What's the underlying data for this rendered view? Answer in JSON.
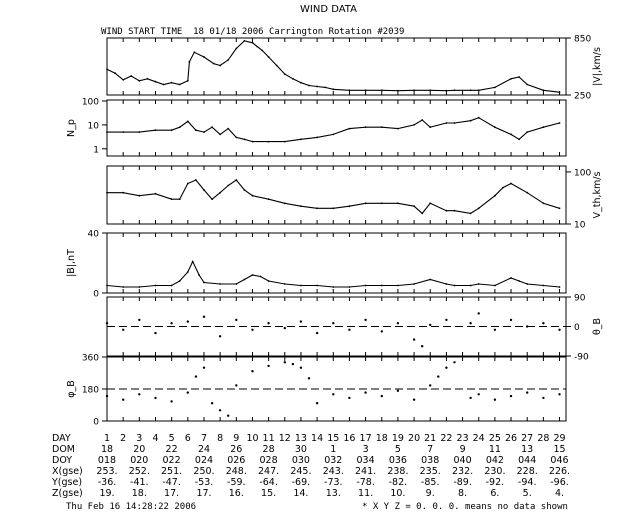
{
  "figure": {
    "title": "WIND DATA",
    "subtitle": "WIND START TIME  18 01/18 2006 Carrington Rotation #2039",
    "footer_left": "Thu Feb 16 14:28:22 2006",
    "footer_right": "* X Y Z = 0. 0. 0. means no data shown"
  },
  "chart_data": [
    {
      "type": "line",
      "panel": "speed",
      "ylabel": "|V|,km/s",
      "ylim": [
        250,
        850
      ],
      "yticks_right": [
        "850",
        "250"
      ],
      "x_unit": "day of rotation",
      "xlim": [
        1,
        29.4
      ],
      "series": [
        {
          "x": [
            1,
            1.5,
            2,
            2.5,
            3,
            3.5,
            4,
            4.5,
            5,
            5.5,
            6,
            6.1,
            6.4,
            7,
            7.6,
            8,
            8.5,
            9,
            9.5,
            10,
            10.3,
            10.6,
            11,
            11.5,
            12,
            12.5,
            13,
            13.5,
            14,
            14.5,
            15,
            16,
            17,
            18,
            19,
            20,
            21,
            22,
            22.5,
            23.5,
            24,
            25,
            26,
            26.5,
            27,
            28,
            29
          ],
          "y": [
            520,
            480,
            410,
            450,
            400,
            420,
            390,
            360,
            380,
            360,
            400,
            600,
            700,
            650,
            580,
            560,
            620,
            740,
            820,
            800,
            760,
            720,
            650,
            560,
            470,
            420,
            380,
            350,
            340,
            330,
            310,
            300,
            300,
            300,
            295,
            300,
            300,
            295,
            300,
            300,
            300,
            330,
            420,
            440,
            360,
            300,
            280
          ]
        }
      ]
    },
    {
      "type": "line",
      "panel": "density",
      "ylabel": "N_p",
      "yscale": "log",
      "ylim": [
        0.5,
        110
      ],
      "yticks_left": [
        "100",
        "10",
        "1"
      ],
      "x_unit": "day of rotation",
      "xlim": [
        1,
        29.4
      ],
      "series": [
        {
          "x": [
            1,
            2,
            3,
            4,
            5,
            5.5,
            6,
            6.5,
            7,
            7.5,
            8,
            8.5,
            9,
            9.5,
            10,
            11,
            12,
            13,
            14,
            15,
            16,
            17,
            18,
            19,
            20,
            20.5,
            21,
            22,
            22.5,
            23.5,
            24,
            25,
            26,
            26.5,
            27,
            28,
            29
          ],
          "y": [
            5,
            5,
            5,
            6,
            6,
            8,
            14,
            6,
            5,
            8,
            4,
            7,
            3,
            2.5,
            2,
            2,
            2,
            2.5,
            3,
            4,
            7,
            8,
            8,
            7,
            10,
            16,
            8,
            12,
            12,
            15,
            20,
            8,
            4,
            2.5,
            5,
            8,
            12
          ]
        }
      ]
    },
    {
      "type": "line",
      "panel": "thermal speed",
      "ylabel": "V_th,km/s",
      "yscale": "log",
      "ylim": [
        10,
        130
      ],
      "yticks_right": [
        "100",
        "10"
      ],
      "x_unit": "day of rotation",
      "xlim": [
        1,
        29.4
      ],
      "series": [
        {
          "x": [
            1,
            2,
            3,
            4,
            5,
            5.5,
            6,
            6.5,
            7,
            7.5,
            8,
            8.5,
            9,
            9.5,
            10,
            11,
            12,
            13,
            14,
            15,
            16,
            17,
            18,
            19,
            20,
            20.5,
            21,
            22,
            22.5,
            23.5,
            24,
            25,
            25.5,
            26,
            27,
            28,
            29
          ],
          "y": [
            40,
            40,
            35,
            38,
            30,
            30,
            60,
            70,
            45,
            30,
            40,
            55,
            70,
            45,
            35,
            30,
            25,
            22,
            20,
            20,
            22,
            25,
            25,
            25,
            22,
            16,
            25,
            18,
            18,
            16,
            20,
            35,
            50,
            60,
            40,
            25,
            20
          ]
        }
      ]
    },
    {
      "type": "line",
      "panel": "magnetic field",
      "ylabel": "|B|,nT",
      "ylim": [
        0,
        40
      ],
      "yticks_left": [
        "40",
        "0"
      ],
      "x_unit": "day of rotation",
      "xlim": [
        1,
        29.4
      ],
      "series": [
        {
          "x": [
            1,
            2,
            3,
            4,
            5,
            5.5,
            6,
            6.3,
            6.7,
            7,
            8,
            9,
            9.5,
            10,
            10.5,
            11,
            12,
            13,
            14,
            15,
            16,
            17,
            18,
            19,
            20,
            21,
            22,
            22.5,
            23.5,
            24,
            25,
            26,
            26.5,
            27,
            28,
            29
          ],
          "y": [
            5,
            4,
            4,
            5,
            5,
            8,
            14,
            21,
            12,
            7,
            6,
            6,
            9,
            12,
            11,
            8,
            6,
            5,
            5,
            4,
            4,
            5,
            5,
            5,
            6,
            9,
            6,
            5,
            5,
            6,
            5,
            10,
            8,
            6,
            5,
            4
          ]
        }
      ]
    },
    {
      "type": "scatter",
      "panel": "field latitude",
      "ylabel": "θ_B",
      "ylim": [
        -90,
        90
      ],
      "yticks_right": [
        "90",
        "0",
        "-90"
      ],
      "reference_line": 0,
      "x_unit": "day of rotation",
      "xlim": [
        1,
        29.4
      ],
      "series": [
        {
          "x": [
            1,
            2,
            3,
            4,
            5,
            6,
            7,
            8,
            9,
            10,
            11,
            12,
            13,
            14,
            15,
            16,
            17,
            18,
            19,
            20,
            20.5,
            21,
            22,
            23.5,
            24,
            25,
            26,
            27,
            28,
            29
          ],
          "y": [
            10,
            -10,
            20,
            -20,
            10,
            15,
            30,
            -30,
            20,
            -10,
            10,
            -5,
            15,
            -20,
            10,
            -10,
            20,
            -15,
            10,
            -40,
            -60,
            5,
            20,
            10,
            40,
            -10,
            20,
            0,
            10,
            -10
          ]
        }
      ]
    },
    {
      "type": "scatter",
      "panel": "field longitude",
      "ylabel": "φ_B",
      "ylim": [
        0,
        360
      ],
      "yticks_left": [
        "360",
        "180",
        "0"
      ],
      "reference_line": 180,
      "x_unit": "day of rotation",
      "xlim": [
        1,
        29.4
      ],
      "series": [
        {
          "x": [
            1,
            2,
            3,
            4,
            5,
            6,
            6.5,
            7,
            7.5,
            8,
            8.5,
            9,
            10,
            11,
            12,
            12.5,
            13,
            13.5,
            14,
            15,
            16,
            17,
            18,
            19,
            20,
            21,
            21.5,
            22,
            22.5,
            23.5,
            24,
            25,
            26,
            27,
            28,
            29
          ],
          "y": [
            140,
            120,
            150,
            130,
            110,
            160,
            250,
            300,
            100,
            60,
            30,
            200,
            280,
            310,
            330,
            320,
            300,
            240,
            100,
            150,
            130,
            160,
            140,
            170,
            120,
            200,
            250,
            300,
            330,
            130,
            150,
            120,
            140,
            160,
            130,
            150
          ]
        }
      ]
    }
  ],
  "table": {
    "rows": [
      {
        "label": "DAY",
        "cells": [
          "1",
          "2",
          "3",
          "4",
          "5",
          "6",
          "7",
          "8",
          "9",
          "10",
          "11",
          "12",
          "13",
          "14",
          "15",
          "16",
          "17",
          "18",
          "19",
          "20",
          "21",
          "22",
          "23",
          "24",
          "25",
          "26",
          "27",
          "28",
          "29"
        ]
      },
      {
        "label": "DOM",
        "cells": [
          "18",
          "20",
          "22",
          "24",
          "26",
          "28",
          "30",
          "1",
          "3",
          "5",
          "7",
          "9",
          "11",
          "13",
          "15"
        ]
      },
      {
        "label": "DOY",
        "cells": [
          "018",
          "020",
          "022",
          "024",
          "026",
          "028",
          "030",
          "032",
          "034",
          "036",
          "038",
          "040",
          "042",
          "044",
          "046"
        ]
      },
      {
        "label": "X(gse)",
        "cells": [
          "253.",
          "252.",
          "251.",
          "250.",
          "248.",
          "247.",
          "245.",
          "243.",
          "241.",
          "238.",
          "235.",
          "232.",
          "230.",
          "228.",
          "226."
        ]
      },
      {
        "label": "Y(gse)",
        "cells": [
          "-36.",
          "-41.",
          "-47.",
          "-53.",
          "-59.",
          "-64.",
          "-69.",
          "-73.",
          "-78.",
          "-82.",
          "-85.",
          "-89.",
          "-92.",
          "-94.",
          "-96."
        ]
      },
      {
        "label": "Z(gse)",
        "cells": [
          "19.",
          "18.",
          "17.",
          "17.",
          "16.",
          "15.",
          "14.",
          "13.",
          "11.",
          "10.",
          "9.",
          "8.",
          "6.",
          "5.",
          "4."
        ]
      }
    ]
  }
}
